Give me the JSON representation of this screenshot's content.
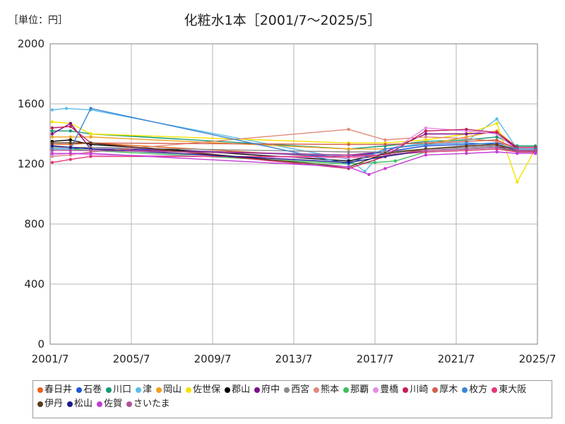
{
  "header": {
    "unit": "［単位：円］",
    "title": "化粧水1本［2001/7～2025/5］"
  },
  "chart_data": {
    "type": "line",
    "title": "化粧水1本［2001/7～2025/5］",
    "unit": "［単位：円］",
    "xlim": [
      2001.5,
      2025.5
    ],
    "ylim": [
      0,
      2000
    ],
    "xticks": [
      "2001/7",
      "2005/7",
      "2009/7",
      "2013/7",
      "2017/7",
      "2021/7",
      "2025/7"
    ],
    "xtick_values": [
      2001.5,
      2005.5,
      2009.5,
      2013.5,
      2017.5,
      2021.5,
      2025.5
    ],
    "yticks": [
      0,
      400,
      800,
      1200,
      1600,
      2000
    ],
    "grid": true,
    "legend_position": "bottom",
    "series": [
      {
        "name": "春日井",
        "color": "#e8601c",
        "points": [
          [
            2001.6,
            1330
          ],
          [
            2002.5,
            1330
          ],
          [
            2003.5,
            1340
          ],
          [
            2016.2,
            1240
          ],
          [
            2018.0,
            1250
          ],
          [
            2020.0,
            1300
          ],
          [
            2022.0,
            1320
          ],
          [
            2023.5,
            1330
          ],
          [
            2024.5,
            1300
          ],
          [
            2025.4,
            1300
          ]
        ]
      },
      {
        "name": "石巻",
        "color": "#1f55d9",
        "points": [
          [
            2001.6,
            1300
          ],
          [
            2002.5,
            1300
          ],
          [
            2003.5,
            1310
          ],
          [
            2016.2,
            1250
          ],
          [
            2018.0,
            1280
          ],
          [
            2020.0,
            1320
          ],
          [
            2022.0,
            1330
          ],
          [
            2023.5,
            1340
          ],
          [
            2024.5,
            1310
          ],
          [
            2025.4,
            1310
          ]
        ]
      },
      {
        "name": "川口",
        "color": "#119a75",
        "points": [
          [
            2001.6,
            1420
          ],
          [
            2002.5,
            1420
          ],
          [
            2003.5,
            1400
          ],
          [
            2016.2,
            1300
          ],
          [
            2018.0,
            1320
          ],
          [
            2020.0,
            1350
          ],
          [
            2022.0,
            1360
          ],
          [
            2023.5,
            1380
          ],
          [
            2024.5,
            1320
          ],
          [
            2025.4,
            1320
          ]
        ]
      },
      {
        "name": "津",
        "color": "#5bbde8",
        "points": [
          [
            2001.6,
            1560
          ],
          [
            2002.3,
            1570
          ],
          [
            2003.5,
            1560
          ],
          [
            2016.2,
            1230
          ],
          [
            2017.0,
            1150
          ],
          [
            2018.0,
            1300
          ],
          [
            2020.0,
            1340
          ],
          [
            2022.0,
            1350
          ],
          [
            2023.5,
            1500
          ],
          [
            2024.5,
            1300
          ],
          [
            2025.4,
            1300
          ]
        ]
      },
      {
        "name": "岡山",
        "color": "#f0a020",
        "points": [
          [
            2001.6,
            1380
          ],
          [
            2002.5,
            1380
          ],
          [
            2003.5,
            1380
          ],
          [
            2016.2,
            1300
          ],
          [
            2018.0,
            1300
          ],
          [
            2020.0,
            1330
          ],
          [
            2022.0,
            1380
          ],
          [
            2023.5,
            1420
          ],
          [
            2024.5,
            1310
          ],
          [
            2025.4,
            1310
          ]
        ]
      },
      {
        "name": "佐世保",
        "color": "#f5e200",
        "points": [
          [
            2001.6,
            1480
          ],
          [
            2002.5,
            1470
          ],
          [
            2003.5,
            1400
          ],
          [
            2016.2,
            1340
          ],
          [
            2018.0,
            1340
          ],
          [
            2020.0,
            1360
          ],
          [
            2022.0,
            1400
          ],
          [
            2023.5,
            1470
          ],
          [
            2024.5,
            1080
          ],
          [
            2025.4,
            1300
          ]
        ]
      },
      {
        "name": "郡山",
        "color": "#000000",
        "points": [
          [
            2001.6,
            1350
          ],
          [
            2002.5,
            1360
          ],
          [
            2003.5,
            1330
          ],
          [
            2016.2,
            1220
          ],
          [
            2018.0,
            1270
          ],
          [
            2020.0,
            1300
          ],
          [
            2022.0,
            1310
          ],
          [
            2023.5,
            1320
          ],
          [
            2024.5,
            1280
          ],
          [
            2025.4,
            1280
          ]
        ]
      },
      {
        "name": "府中",
        "color": "#7d0f8c",
        "points": [
          [
            2001.6,
            1400
          ],
          [
            2002.5,
            1470
          ],
          [
            2003.5,
            1300
          ],
          [
            2016.2,
            1260
          ],
          [
            2018.0,
            1280
          ],
          [
            2020.0,
            1400
          ],
          [
            2022.0,
            1400
          ],
          [
            2023.5,
            1410
          ],
          [
            2024.5,
            1300
          ],
          [
            2025.4,
            1300
          ]
        ]
      },
      {
        "name": "西宮",
        "color": "#8a8a8a",
        "points": [
          [
            2001.6,
            1310
          ],
          [
            2002.5,
            1310
          ],
          [
            2003.5,
            1310
          ],
          [
            2016.2,
            1280
          ],
          [
            2018.0,
            1280
          ],
          [
            2020.0,
            1300
          ],
          [
            2022.0,
            1310
          ],
          [
            2023.5,
            1320
          ],
          [
            2024.5,
            1300
          ],
          [
            2025.4,
            1300
          ]
        ]
      },
      {
        "name": "熊本",
        "color": "#e08a7a",
        "points": [
          [
            2001.6,
            1250
          ],
          [
            2002.5,
            1260
          ],
          [
            2003.5,
            1280
          ],
          [
            2016.2,
            1430
          ],
          [
            2018.0,
            1360
          ],
          [
            2020.0,
            1380
          ],
          [
            2022.0,
            1370
          ],
          [
            2023.5,
            1350
          ],
          [
            2024.5,
            1300
          ],
          [
            2025.4,
            1300
          ]
        ]
      },
      {
        "name": "那覇",
        "color": "#3cc05a",
        "points": [
          [
            2001.6,
            1300
          ],
          [
            2002.5,
            1300
          ],
          [
            2003.5,
            1290
          ],
          [
            2016.2,
            1200
          ],
          [
            2017.5,
            1210
          ],
          [
            2018.5,
            1220
          ],
          [
            2020.0,
            1280
          ],
          [
            2022.0,
            1290
          ],
          [
            2023.5,
            1300
          ],
          [
            2024.5,
            1290
          ],
          [
            2025.4,
            1290
          ]
        ]
      },
      {
        "name": "豊橋",
        "color": "#e58de8",
        "points": [
          [
            2001.6,
            1260
          ],
          [
            2002.5,
            1270
          ],
          [
            2003.5,
            1260
          ],
          [
            2016.2,
            1240
          ],
          [
            2018.0,
            1260
          ],
          [
            2020.0,
            1440
          ],
          [
            2022.0,
            1420
          ],
          [
            2023.5,
            1400
          ],
          [
            2024.5,
            1290
          ],
          [
            2025.4,
            1290
          ]
        ]
      },
      {
        "name": "川崎",
        "color": "#c81e5a",
        "points": [
          [
            2001.6,
            1440
          ],
          [
            2002.5,
            1450
          ],
          [
            2003.5,
            1340
          ],
          [
            2016.2,
            1170
          ],
          [
            2018.0,
            1250
          ],
          [
            2020.0,
            1420
          ],
          [
            2022.0,
            1430
          ],
          [
            2023.5,
            1410
          ],
          [
            2024.5,
            1310
          ],
          [
            2025.4,
            1310
          ]
        ]
      },
      {
        "name": "厚木",
        "color": "#d25f4a",
        "points": [
          [
            2001.6,
            1340
          ],
          [
            2002.5,
            1340
          ],
          [
            2003.5,
            1340
          ],
          [
            2016.2,
            1330
          ],
          [
            2018.0,
            1330
          ],
          [
            2020.0,
            1340
          ],
          [
            2022.0,
            1350
          ],
          [
            2023.5,
            1360
          ],
          [
            2024.5,
            1300
          ],
          [
            2025.4,
            1300
          ]
        ]
      },
      {
        "name": "枚方",
        "color": "#3a86d6",
        "points": [
          [
            2001.6,
            1300
          ],
          [
            2002.5,
            1300
          ],
          [
            2003.5,
            1570
          ],
          [
            2016.2,
            1200
          ],
          [
            2018.0,
            1300
          ],
          [
            2020.0,
            1330
          ],
          [
            2022.0,
            1340
          ],
          [
            2023.5,
            1330
          ],
          [
            2024.5,
            1300
          ],
          [
            2025.4,
            1300
          ]
        ]
      },
      {
        "name": "東大阪",
        "color": "#e8367a",
        "points": [
          [
            2001.6,
            1210
          ],
          [
            2002.5,
            1230
          ],
          [
            2003.5,
            1250
          ],
          [
            2016.2,
            1250
          ],
          [
            2018.0,
            1260
          ],
          [
            2020.0,
            1280
          ],
          [
            2022.0,
            1290
          ],
          [
            2023.5,
            1300
          ],
          [
            2024.5,
            1280
          ],
          [
            2025.4,
            1280
          ]
        ]
      },
      {
        "name": "伊丹",
        "color": "#5a3a1a",
        "points": [
          [
            2001.6,
            1340
          ],
          [
            2002.5,
            1340
          ],
          [
            2003.5,
            1340
          ],
          [
            2016.2,
            1180
          ],
          [
            2018.0,
            1270
          ],
          [
            2020.0,
            1300
          ],
          [
            2022.0,
            1320
          ],
          [
            2023.5,
            1330
          ],
          [
            2024.5,
            1290
          ],
          [
            2025.4,
            1290
          ]
        ]
      },
      {
        "name": "松山",
        "color": "#1a1a8c",
        "points": [
          [
            2001.6,
            1320
          ],
          [
            2002.5,
            1310
          ],
          [
            2003.5,
            1300
          ],
          [
            2016.2,
            1210
          ],
          [
            2018.0,
            1250
          ],
          [
            2020.0,
            1290
          ],
          [
            2022.0,
            1300
          ],
          [
            2023.5,
            1310
          ],
          [
            2024.5,
            1290
          ],
          [
            2025.4,
            1290
          ]
        ]
      },
      {
        "name": "佐賀",
        "color": "#c33bd6",
        "points": [
          [
            2001.6,
            1270
          ],
          [
            2002.5,
            1270
          ],
          [
            2003.5,
            1270
          ],
          [
            2016.2,
            1180
          ],
          [
            2017.2,
            1130
          ],
          [
            2018.0,
            1170
          ],
          [
            2020.0,
            1260
          ],
          [
            2022.0,
            1270
          ],
          [
            2023.5,
            1280
          ],
          [
            2024.5,
            1270
          ],
          [
            2025.4,
            1270
          ]
        ]
      },
      {
        "name": "さいたま",
        "color": "#b0529a",
        "points": [
          [
            2001.6,
            1290
          ],
          [
            2002.5,
            1290
          ],
          [
            2003.5,
            1290
          ],
          [
            2016.2,
            1260
          ],
          [
            2018.0,
            1260
          ],
          [
            2020.0,
            1290
          ],
          [
            2022.0,
            1300
          ],
          [
            2023.5,
            1310
          ],
          [
            2024.5,
            1290
          ],
          [
            2025.4,
            1290
          ]
        ]
      }
    ]
  }
}
